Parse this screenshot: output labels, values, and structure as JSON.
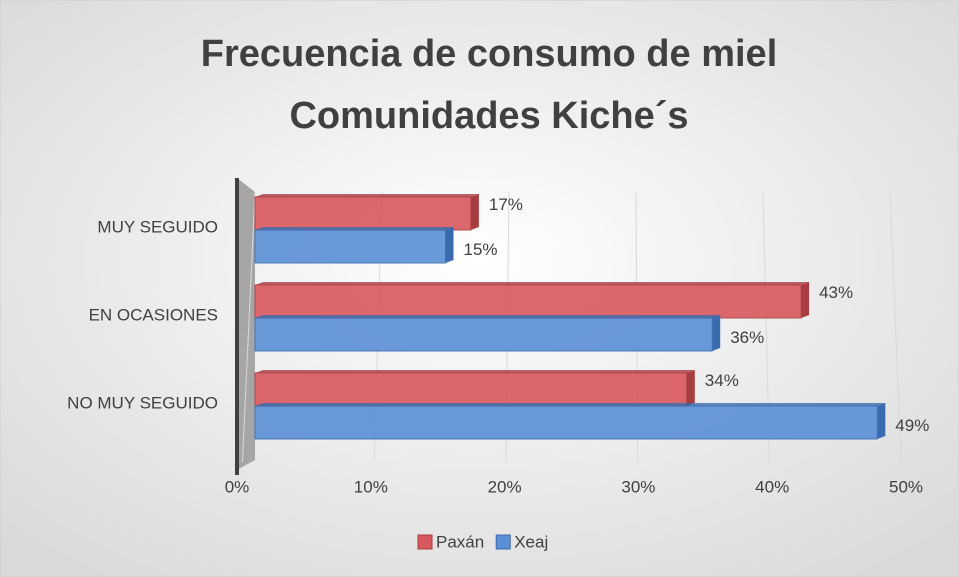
{
  "chart_data": {
    "type": "bar",
    "orientation": "horizontal",
    "title": "Frecuencia de consumo de miel Comunidades Kiche´s",
    "title_lines": [
      "Frecuencia de consumo de miel",
      "Comunidades Kiche´s"
    ],
    "categories": [
      "MUY SEGUIDO",
      "EN OCASIONES",
      "NO MUY SEGUIDO"
    ],
    "series": [
      {
        "name": "Paxán",
        "color": "#d9585d",
        "values": [
          17,
          43,
          34
        ],
        "value_labels": [
          "17%",
          "43%",
          "34%"
        ]
      },
      {
        "name": "Xeaj",
        "color": "#5b8fd6",
        "values": [
          15,
          36,
          49
        ],
        "value_labels": [
          "15%",
          "36%",
          "49%"
        ]
      }
    ],
    "xlim": [
      0,
      50
    ],
    "xticks": [
      {
        "value": 0,
        "label": "0%"
      },
      {
        "value": 10,
        "label": "10%"
      },
      {
        "value": 20,
        "label": "20%"
      },
      {
        "value": 30,
        "label": "30%"
      },
      {
        "value": 40,
        "label": "40%"
      },
      {
        "value": 50,
        "label": "50%"
      }
    ],
    "grid": true,
    "legend": "bottom"
  }
}
